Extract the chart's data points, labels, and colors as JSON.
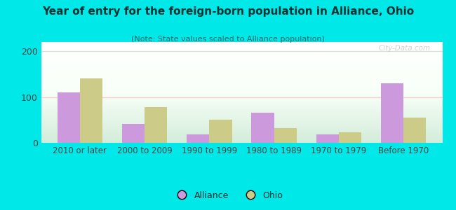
{
  "title": "Year of entry for the foreign-born population in Alliance, Ohio",
  "subtitle": "(Note: State values scaled to Alliance population)",
  "categories": [
    "2010 or later",
    "2000 to 2009",
    "1990 to 1999",
    "1980 to 1989",
    "1970 to 1979",
    "Before 1970"
  ],
  "alliance_values": [
    110,
    42,
    18,
    65,
    18,
    130
  ],
  "ohio_values": [
    140,
    78,
    50,
    32,
    23,
    55
  ],
  "alliance_color": "#cc99dd",
  "ohio_color": "#cccc88",
  "bg_color": "#00e8e8",
  "title_color": "#003333",
  "subtitle_color": "#336666",
  "tick_color": "#444444",
  "ylim": [
    0,
    220
  ],
  "yticks": [
    0,
    100,
    200
  ],
  "bar_width": 0.35,
  "legend_labels": [
    "Alliance",
    "Ohio"
  ],
  "watermark": "City-Data.com",
  "grid_color_100": "#ffcccc",
  "grid_color_200": "#dddddd"
}
